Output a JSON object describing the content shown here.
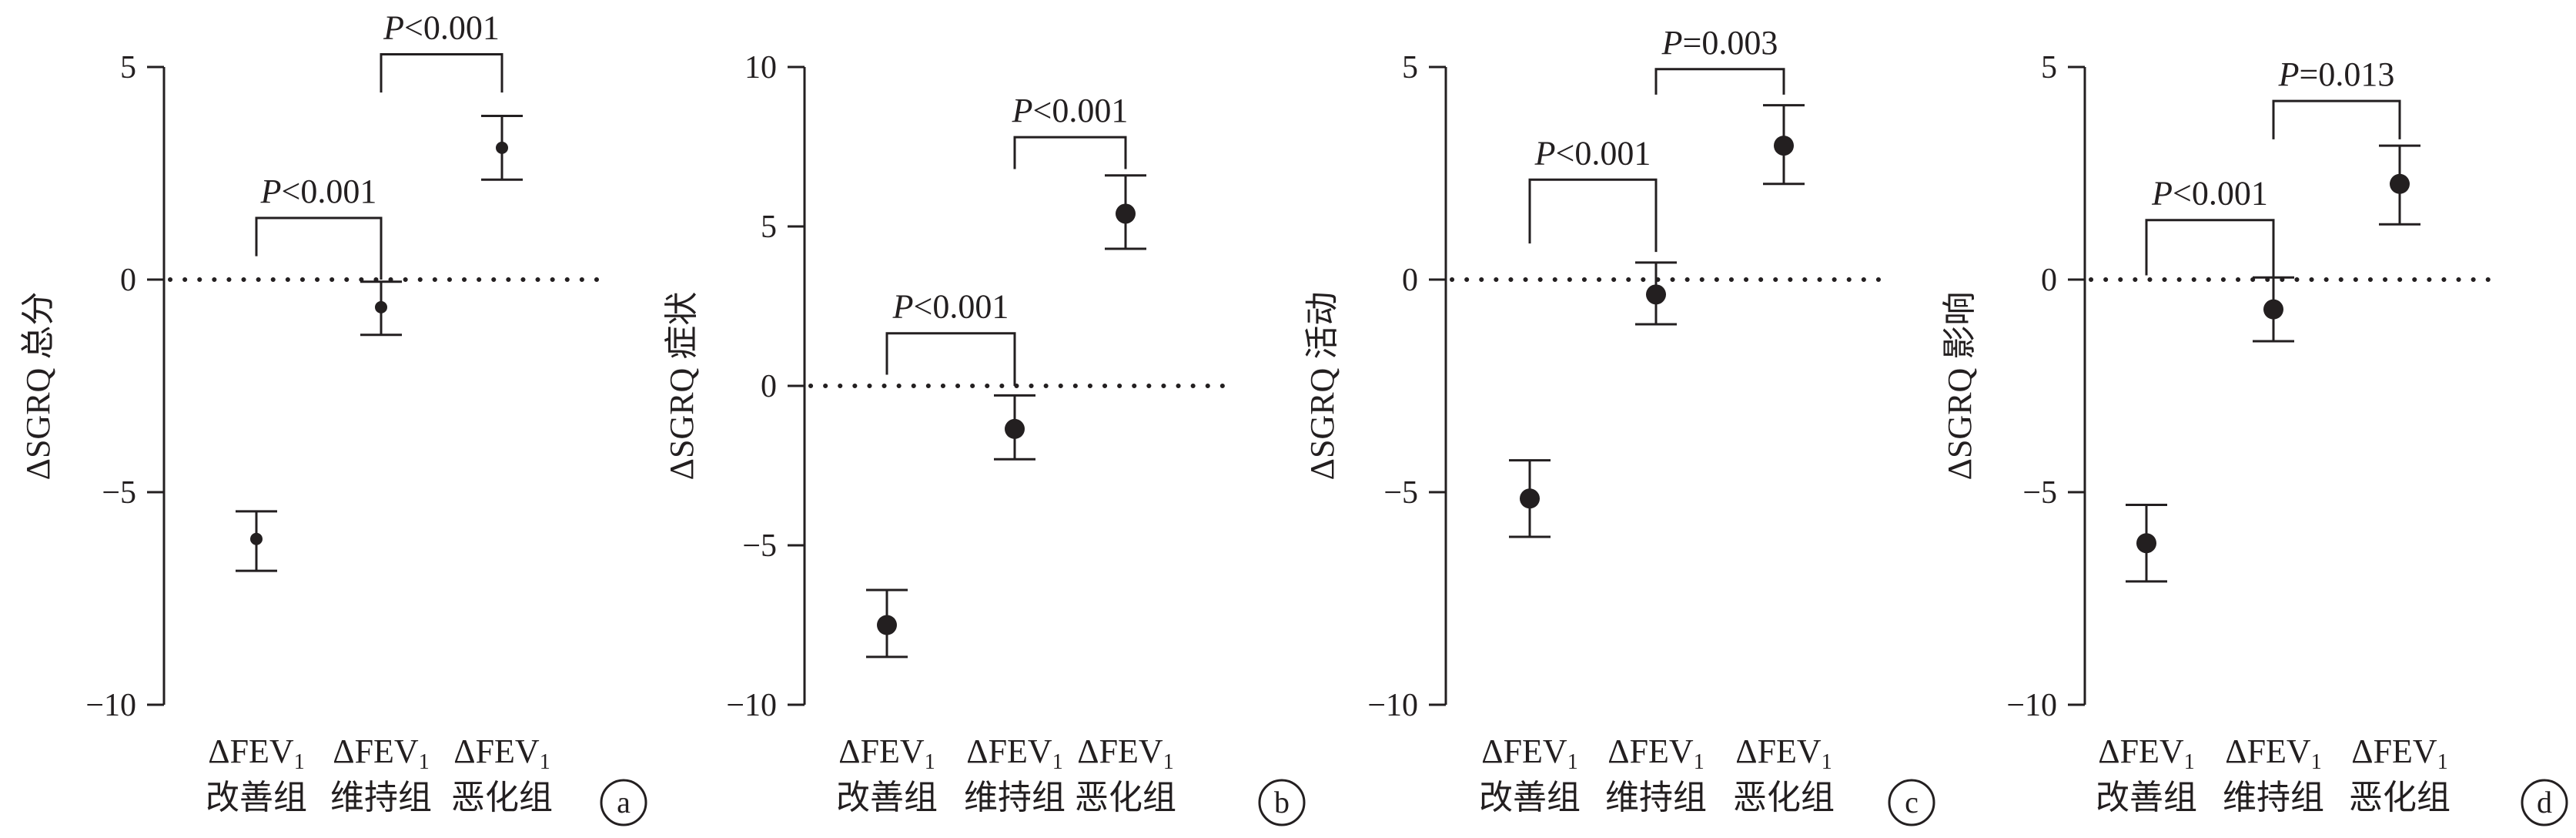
{
  "chart_data": [
    {
      "type": "scatter",
      "panel_label": "a",
      "ylabel": "ΔSGRQ 总分",
      "ylim": [
        -10,
        5
      ],
      "yticks": [
        5,
        0,
        -5,
        -10
      ],
      "ytick_labels": [
        "5",
        "0",
        "−5",
        "−10"
      ],
      "reference_line_y": 0,
      "categories": [
        {
          "top": "ΔFEV",
          "sub": "1",
          "bottom": "改善组"
        },
        {
          "top": "ΔFEV",
          "sub": "1",
          "bottom": "维持组"
        },
        {
          "top": "ΔFEV",
          "sub": "1",
          "bottom": "恶化组"
        }
      ],
      "points": [
        {
          "mean": -6.1,
          "lower": -6.85,
          "upper": -5.45
        },
        {
          "mean": -0.65,
          "lower": -1.3,
          "upper": -0.05
        },
        {
          "mean": 3.1,
          "lower": 2.35,
          "upper": 3.85
        }
      ],
      "comparisons": [
        {
          "from": 0,
          "to": 1,
          "p": "P",
          "op": "<",
          "value": "0.001",
          "bracket_y": 1.45,
          "foot_from": 0.55,
          "foot_to": 0.0
        },
        {
          "from": 1,
          "to": 2,
          "p": "P",
          "op": "<",
          "value": "0.001",
          "bracket_y": 5.3,
          "foot_from": 4.4,
          "foot_to": 4.4
        }
      ]
    },
    {
      "type": "scatter",
      "panel_label": "b",
      "ylabel": "ΔSGRQ 症状",
      "ylim": [
        -10,
        10
      ],
      "yticks": [
        10,
        5,
        0,
        -5,
        -10
      ],
      "ytick_labels": [
        "10",
        "5",
        "0",
        "−5",
        "−10"
      ],
      "reference_line_y": 0,
      "categories": [
        {
          "top": "ΔFEV",
          "sub": "1",
          "bottom": "改善组"
        },
        {
          "top": "ΔFEV",
          "sub": "1",
          "bottom": "维持组"
        },
        {
          "top": "ΔFEV",
          "sub": "1",
          "bottom": "恶化组"
        }
      ],
      "points": [
        {
          "mean": -7.5,
          "lower": -8.5,
          "upper": -6.4
        },
        {
          "mean": -1.35,
          "lower": -2.3,
          "upper": -0.3
        },
        {
          "mean": 5.4,
          "lower": 4.3,
          "upper": 6.6
        }
      ],
      "comparisons": [
        {
          "from": 0,
          "to": 1,
          "p": "P",
          "op": "<",
          "value": "0.001",
          "bracket_y": 1.65,
          "foot_from": 0.35,
          "foot_to": 0.0
        },
        {
          "from": 1,
          "to": 2,
          "p": "P",
          "op": "<",
          "value": "0.001",
          "bracket_y": 7.8,
          "foot_from": 6.8,
          "foot_to": 6.8
        }
      ]
    },
    {
      "type": "scatter",
      "panel_label": "c",
      "ylabel": "ΔSGRQ 活动",
      "ylim": [
        -10,
        5
      ],
      "yticks": [
        5,
        0,
        -5,
        -10
      ],
      "ytick_labels": [
        "5",
        "0",
        "−5",
        "−10"
      ],
      "reference_line_y": 0,
      "categories": [
        {
          "top": "ΔFEV",
          "sub": "1",
          "bottom": "改善组"
        },
        {
          "top": "ΔFEV",
          "sub": "1",
          "bottom": "维持组"
        },
        {
          "top": "ΔFEV",
          "sub": "1",
          "bottom": "恶化组"
        }
      ],
      "points": [
        {
          "mean": -5.15,
          "lower": -6.05,
          "upper": -4.25
        },
        {
          "mean": -0.35,
          "lower": -1.05,
          "upper": 0.4
        },
        {
          "mean": 3.15,
          "lower": 2.25,
          "upper": 4.1
        }
      ],
      "comparisons": [
        {
          "from": 0,
          "to": 1,
          "p": "P",
          "op": "<",
          "value": "0.001",
          "bracket_y": 2.35,
          "foot_from": 0.85,
          "foot_to": 0.65
        },
        {
          "from": 1,
          "to": 2,
          "p": "P",
          "op": "=",
          "value": "0.003",
          "bracket_y": 4.95,
          "foot_from": 4.35,
          "foot_to": 4.35
        }
      ]
    },
    {
      "type": "scatter",
      "panel_label": "d",
      "ylabel": "ΔSGRQ 影响",
      "ylim": [
        -10,
        5
      ],
      "yticks": [
        5,
        0,
        -5,
        -10
      ],
      "ytick_labels": [
        "5",
        "0",
        "−5",
        "−10"
      ],
      "reference_line_y": 0,
      "categories": [
        {
          "top": "ΔFEV",
          "sub": "1",
          "bottom": "改善组"
        },
        {
          "top": "ΔFEV",
          "sub": "1",
          "bottom": "维持组"
        },
        {
          "top": "ΔFEV",
          "sub": "1",
          "bottom": "恶化组"
        }
      ],
      "points": [
        {
          "mean": -6.2,
          "lower": -7.1,
          "upper": -5.3
        },
        {
          "mean": -0.7,
          "lower": -1.45,
          "upper": 0.05
        },
        {
          "mean": 2.25,
          "lower": 1.3,
          "upper": 3.15
        }
      ],
      "comparisons": [
        {
          "from": 0,
          "to": 1,
          "p": "P",
          "op": "<",
          "value": "0.001",
          "bracket_y": 1.4,
          "foot_from": 0.1,
          "foot_to": 0.0
        },
        {
          "from": 1,
          "to": 2,
          "p": "P",
          "op": "=",
          "value": "0.013",
          "bracket_y": 4.2,
          "foot_from": 3.3,
          "foot_to": 3.3
        }
      ]
    }
  ]
}
